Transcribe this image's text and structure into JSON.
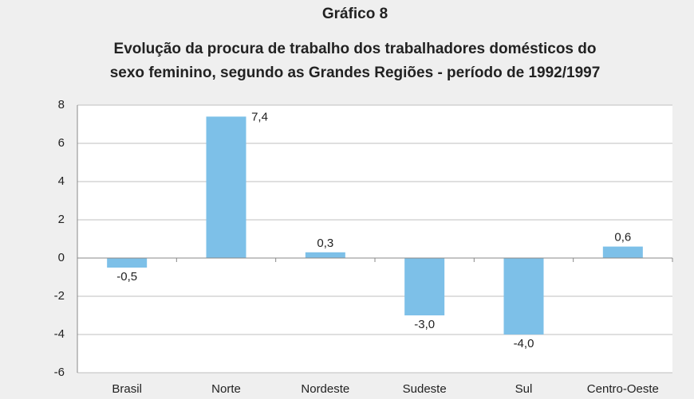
{
  "chart_data": {
    "type": "bar",
    "title": "Gráfico 8",
    "subtitle": [
      "Evolução da procura de trabalho dos trabalhadores domésticos do",
      "sexo feminino, segundo as Grandes Regiões - período de 1992/1997"
    ],
    "categories": [
      "Brasil",
      "Norte",
      "Nordeste",
      "Sudeste",
      "Sul",
      "Centro-Oeste"
    ],
    "values": [
      -0.5,
      7.4,
      0.3,
      -3.0,
      -4.0,
      0.6
    ],
    "value_labels": [
      "-0,5",
      "7,4",
      "0,3",
      "-3,0",
      "-4,0",
      "0,6"
    ],
    "color": "#7dc0e8",
    "ylim": [
      -6,
      8
    ],
    "yticks": [
      -6,
      -4,
      -2,
      0,
      2,
      4,
      6,
      8
    ],
    "grid": true
  }
}
